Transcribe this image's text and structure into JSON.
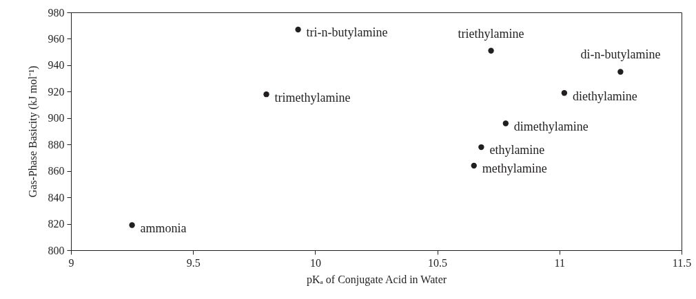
{
  "chart_data": {
    "type": "scatter",
    "xlabel": "pKₐ of Conjugate Acid in Water",
    "ylabel": "Gas-Phase Basicity (kJ mol⁻¹)",
    "xlim": [
      9,
      11.5
    ],
    "xticks": [
      9,
      9.5,
      10,
      10.5,
      11,
      11.5
    ],
    "ylim": [
      800,
      980
    ],
    "yticks": [
      800,
      820,
      840,
      860,
      880,
      900,
      920,
      940,
      960,
      980
    ],
    "grid": false,
    "marker": "circle",
    "series": [
      {
        "color": "#231f20",
        "x": [
          9.25,
          9.8,
          9.93,
          10.72,
          11.25,
          11.02,
          10.78,
          10.68,
          10.65
        ],
        "values": [
          819,
          918,
          967,
          951,
          935,
          919,
          896,
          878,
          864
        ]
      }
    ],
    "annotations": [
      {
        "text": "ammonia",
        "x": 9.25,
        "y": 819
      },
      {
        "text": "trimethylamine",
        "x": 9.8,
        "y": 918
      },
      {
        "text": "tri-n-butylamine",
        "x": 9.93,
        "y": 967
      },
      {
        "text": "triethylamine",
        "x": 10.72,
        "y": 951
      },
      {
        "text": "di-n-butylamine",
        "x": 11.25,
        "y": 935
      },
      {
        "text": "diethylamine",
        "x": 11.02,
        "y": 919
      },
      {
        "text": "dimethylamine",
        "x": 10.78,
        "y": 896
      },
      {
        "text": "ethylamine",
        "x": 10.68,
        "y": 878
      },
      {
        "text": "methylamine",
        "x": 10.65,
        "y": 864
      }
    ]
  }
}
